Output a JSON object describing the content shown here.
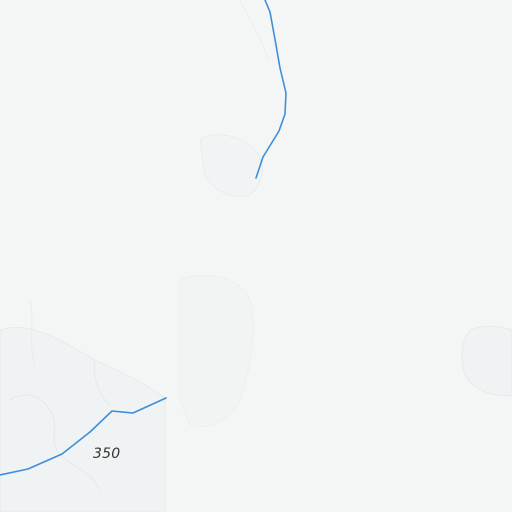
{
  "map": {
    "background_color": "#f4f5f5",
    "terrain_tint_color": "#f0f3f3",
    "boundary_color": "#e4e8e8",
    "river_color": "#3d8fd9",
    "labels": {
      "contour_350": "350"
    }
  }
}
